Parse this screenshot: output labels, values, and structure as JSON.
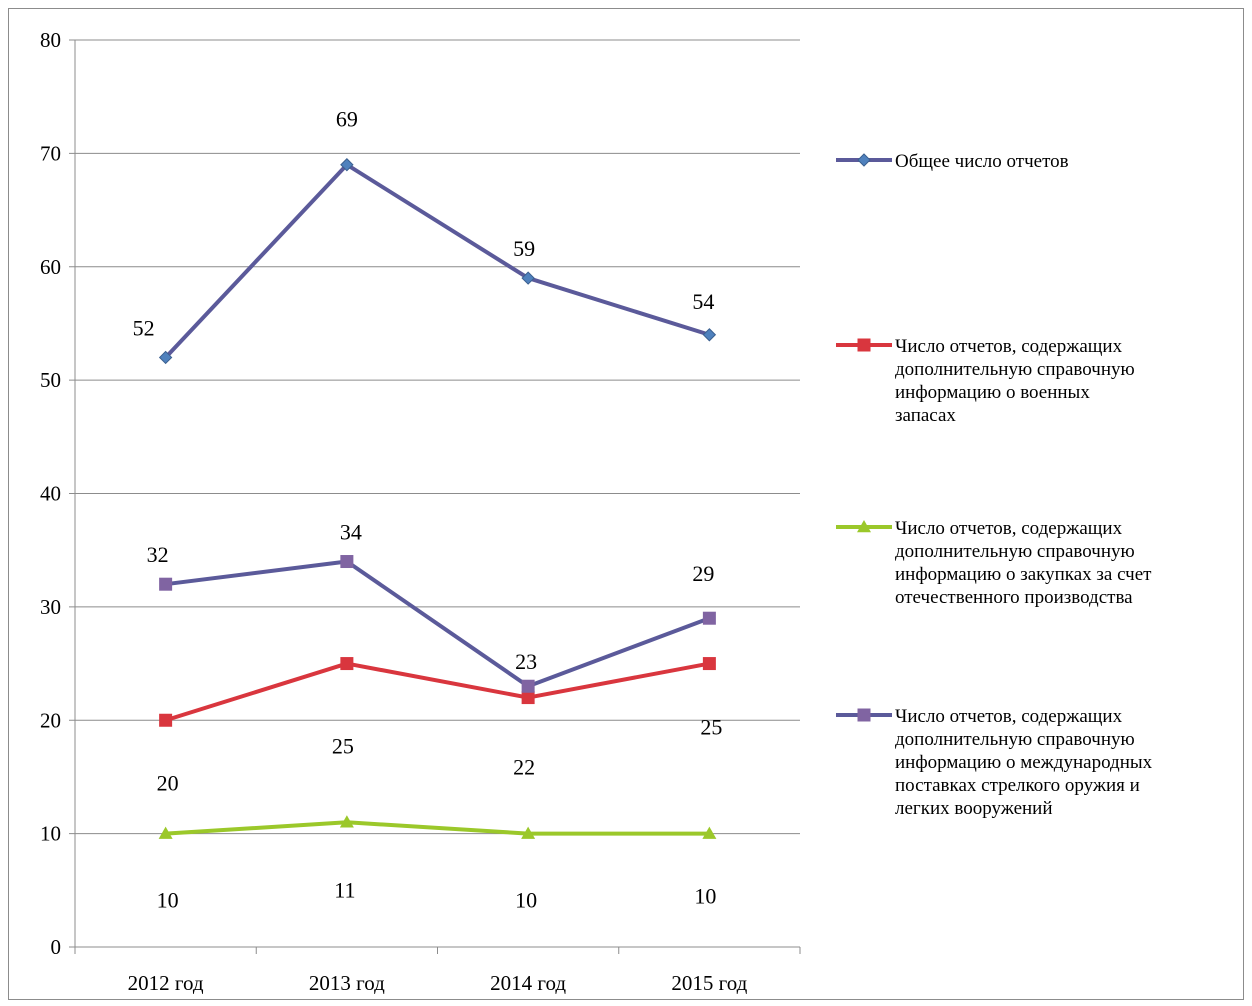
{
  "chart_data": {
    "type": "line",
    "categories": [
      "2012 год",
      "2013 год",
      "2014 год",
      "2015 год"
    ],
    "ylim": [
      0,
      80
    ],
    "yticks": [
      0,
      10,
      20,
      30,
      40,
      50,
      60,
      70,
      80
    ],
    "grid": true,
    "legend_position": "right",
    "series": [
      {
        "name": "Общее число отчетов",
        "values": [
          52,
          69,
          59,
          54
        ],
        "labels": [
          "52",
          "69",
          "59",
          "54"
        ],
        "color": "#4f81bd",
        "line_color": "#5b5a9a",
        "marker": "diamond"
      },
      {
        "name": "Число отчетов, содержащих дополнительную справочную информацию о военных запасах",
        "name_lines": [
          "Число отчетов, содержащих",
          "дополнительную справочную",
          "информацию о военных",
          "запасах"
        ],
        "values": [
          20,
          25,
          22,
          25
        ],
        "labels": [
          "20",
          "25",
          "22",
          "25"
        ],
        "color": "#d9363e",
        "line_color": "#d9363e",
        "marker": "square"
      },
      {
        "name": "Число отчетов, содержащих дополнительную справочную информацию о закупках за счет отечественного производства",
        "name_lines": [
          "Число отчетов, содержащих",
          "дополнительную справочную",
          "информацию о закупках за счет",
          "отечественного производства"
        ],
        "values": [
          10,
          11,
          10,
          10
        ],
        "labels": [
          "10",
          "11",
          "10",
          "10"
        ],
        "color": "#9bc82a",
        "line_color": "#9bc82a",
        "marker": "triangle"
      },
      {
        "name": "Число отчетов, содержащих дополнительную справочную информацию о международных поставках стрелкого оружия и легких вооружений",
        "name_lines": [
          "Число отчетов, содержащих",
          "дополнительную справочную",
          "информацию о международных",
          "поставках стрелкого оружия и",
          "легких вооружений"
        ],
        "values": [
          32,
          34,
          23,
          29
        ],
        "labels": [
          "32",
          "34",
          "23",
          "29"
        ],
        "color": "#8064a2",
        "line_color": "#5b5a9a",
        "marker": "square"
      }
    ]
  }
}
